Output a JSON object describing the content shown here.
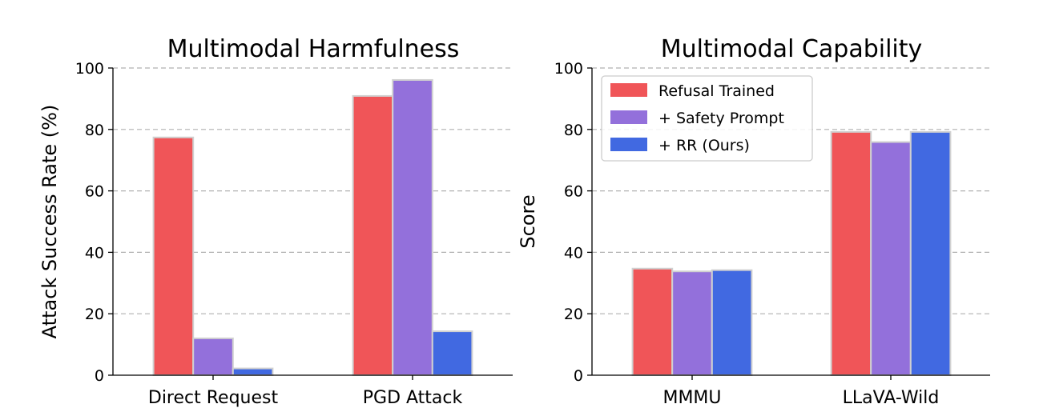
{
  "colors": {
    "Refusal Trained": "#f05558",
    "+ Safety Prompt": "#9370db",
    "+ RR (Ours)": "#4169e1"
  },
  "legend": [
    "Refusal Trained",
    "+ Safety Prompt",
    "+ RR (Ours)"
  ],
  "chart_data": [
    {
      "type": "bar",
      "title": "Multimodal Harmfulness",
      "xlabel": "",
      "ylabel": "Attack Success Rate (%)",
      "ylim": [
        0,
        100
      ],
      "yticks": [
        "0",
        "20",
        "40",
        "60",
        "80",
        "100"
      ],
      "grid": true,
      "categories": [
        "Direct Request",
        "PGD Attack"
      ],
      "series": [
        {
          "name": "Refusal Trained",
          "values": [
            77.4,
            90.9
          ]
        },
        {
          "name": "+ Safety Prompt",
          "values": [
            12.0,
            96.1
          ]
        },
        {
          "name": "+ RR (Ours)",
          "values": [
            2.2,
            14.3
          ]
        }
      ]
    },
    {
      "type": "bar",
      "title": "Multimodal Capability",
      "xlabel": "",
      "ylabel": "Score",
      "ylim": [
        0,
        100
      ],
      "yticks": [
        "0",
        "20",
        "40",
        "60",
        "80",
        "100"
      ],
      "grid": true,
      "legend_position": "top-left",
      "categories": [
        "MMMU",
        "LLaVA-Wild"
      ],
      "series": [
        {
          "name": "Refusal Trained",
          "values": [
            34.7,
            79.2
          ]
        },
        {
          "name": "+ Safety Prompt",
          "values": [
            33.8,
            75.9
          ]
        },
        {
          "name": "+ RR (Ours)",
          "values": [
            34.2,
            79.2
          ]
        }
      ]
    }
  ]
}
